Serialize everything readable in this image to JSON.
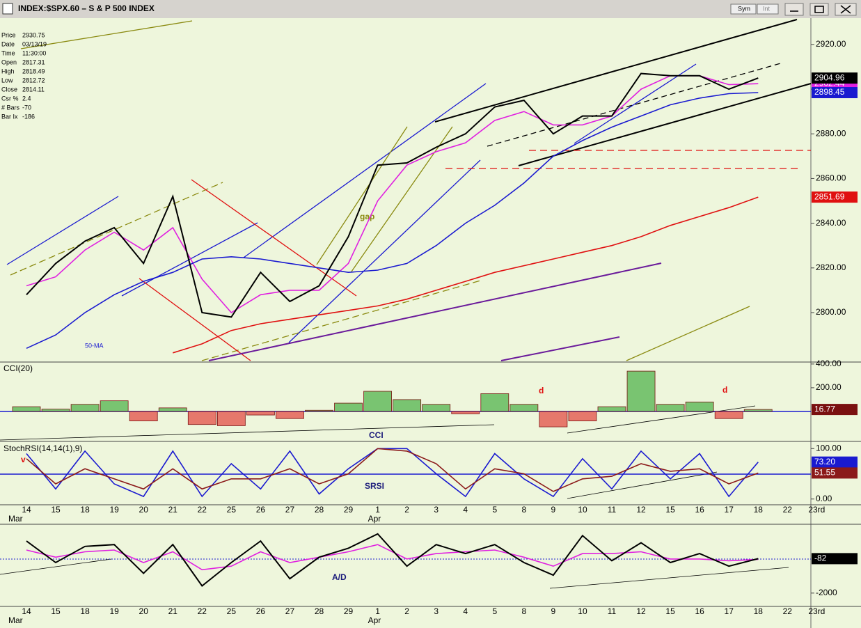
{
  "window": {
    "title": "INDEX:$SPX.60 – S & P 500 INDEX",
    "buttons": [
      "Sym",
      "Int"
    ]
  },
  "info": [
    [
      "Price",
      "2930.75"
    ],
    [
      "Date",
      "03/13/19"
    ],
    [
      "Time",
      "11:30:00"
    ],
    [
      "Open",
      "2817.31"
    ],
    [
      "High",
      "2818.49"
    ],
    [
      "Low",
      "2812.72"
    ],
    [
      "Close",
      "2814.11"
    ],
    [
      "Csr %",
      "2.4"
    ],
    [
      "# Bars",
      "-70"
    ],
    [
      "Bar Ix",
      "-186"
    ]
  ],
  "chart_data": [
    {
      "type": "line",
      "ylim": [
        2778.5,
        2931.8
      ],
      "yticks": [
        {
          "value": 2800,
          "label": "2800.00"
        },
        {
          "value": 2820,
          "label": "2820.00"
        },
        {
          "value": 2840,
          "label": "2840.00"
        },
        {
          "value": 2860,
          "label": "2860.00"
        },
        {
          "value": 2880,
          "label": "2880.00"
        },
        {
          "value": 2900,
          "label": "2900.00"
        },
        {
          "value": 2920,
          "label": "2920.00"
        }
      ],
      "annotations": [
        "gap",
        "50-MA"
      ],
      "series": [
        {
          "color": "#e020e0",
          "values": [
            2812,
            2816,
            2828,
            2836,
            2828,
            2838,
            2815,
            2800,
            2808,
            2810,
            2810,
            2822,
            2850,
            2866,
            2872,
            2876,
            2886,
            2890,
            2884,
            2884,
            2888,
            2900,
            2906,
            2906,
            2902,
            2902.44,
            null,
            null
          ],
          "value_labels": [
            null,
            null,
            null,
            null,
            null,
            null,
            null,
            null,
            null,
            null,
            null,
            null,
            null,
            null,
            null,
            null,
            null,
            null,
            null,
            null,
            null,
            null,
            null,
            null,
            null,
            "2902.44",
            null,
            null
          ]
        },
        {
          "color": "#1a1ad0",
          "values": [
            2784,
            2790,
            2800,
            2808,
            2814,
            2818,
            2824,
            2825,
            2824,
            2822,
            2820,
            2818,
            2819,
            2822,
            2830,
            2840,
            2848,
            2858,
            2870,
            2877,
            2883,
            2888,
            2893,
            2896,
            2898,
            2898.45,
            null,
            null
          ],
          "value_labels": [
            null,
            null,
            null,
            null,
            null,
            null,
            null,
            null,
            null,
            null,
            null,
            null,
            null,
            null,
            null,
            null,
            null,
            null,
            null,
            null,
            null,
            null,
            null,
            null,
            null,
            "2898.45",
            null,
            null
          ]
        },
        {
          "color": "#e01010",
          "values": [
            null,
            null,
            null,
            null,
            null,
            2782,
            2786,
            2792,
            2795,
            2797,
            2799,
            2801,
            2803,
            2806,
            2810,
            2814,
            2818,
            2821,
            2824,
            2827,
            2830,
            2834,
            2839,
            2843,
            2847,
            2851.69,
            null,
            null
          ],
          "value_labels": [
            null,
            null,
            null,
            null,
            null,
            null,
            null,
            null,
            null,
            null,
            null,
            null,
            null,
            null,
            null,
            null,
            null,
            null,
            null,
            null,
            null,
            null,
            null,
            null,
            null,
            "2851.69",
            null,
            null
          ]
        },
        {
          "color": "#000000",
          "values": [
            2808,
            2822,
            2832,
            2838,
            2822,
            2852,
            2800,
            2798,
            2818,
            2805,
            2812,
            2834,
            2866,
            2867,
            2874,
            2880,
            2892,
            2895,
            2880,
            2888,
            2888,
            2907,
            2906,
            2906,
            2900,
            2904.96,
            null,
            null
          ],
          "value_labels": [
            null,
            null,
            null,
            null,
            null,
            null,
            null,
            null,
            null,
            null,
            null,
            null,
            null,
            null,
            null,
            null,
            null,
            null,
            null,
            null,
            null,
            null,
            null,
            null,
            null,
            "2904.96",
            null,
            null
          ]
        }
      ]
    },
    {
      "type": "bar",
      "title": "CCI(20)",
      "ylim": [
        -241,
        405
      ],
      "yticks": [
        {
          "value": 200,
          "label": "200.00"
        },
        {
          "value": 400,
          "label": "400.00"
        }
      ],
      "annotations": [
        "CCI",
        "d",
        "d"
      ],
      "colors": {
        "positive": "#1a9a1a",
        "negative": "#e01010"
      },
      "values": [
        40,
        20,
        60,
        90,
        -80,
        30,
        -110,
        -120,
        -30,
        -60,
        10,
        70,
        170,
        100,
        60,
        -20,
        150,
        60,
        -130,
        -80,
        40,
        340,
        60,
        80,
        -60,
        16.77,
        null,
        null
      ],
      "label_color": "#7a1010"
    },
    {
      "type": "line",
      "title": "StochRSI(14,14(1),9)",
      "ylim": [
        -10,
        110
      ],
      "yticks": [
        {
          "value": 0,
          "label": "0.00"
        },
        {
          "value": 100,
          "label": "100.00"
        }
      ],
      "annotations": [
        "SRSI",
        "v"
      ],
      "categories": [
        "14",
        "15",
        "18",
        "19",
        "20",
        "21",
        "22",
        "25",
        "26",
        "27",
        "28",
        "29",
        "1",
        "2",
        "3",
        "4",
        "5",
        "8",
        "9",
        "10",
        "11",
        "12",
        "15",
        "16",
        "17",
        "18",
        "22",
        "23rd"
      ],
      "month_labels": [
        "Mar",
        null,
        null,
        null,
        null,
        null,
        null,
        null,
        null,
        null,
        null,
        null,
        "Apr",
        null,
        null,
        null,
        null,
        null,
        null,
        null,
        null,
        null,
        null,
        null,
        null,
        null,
        null,
        null
      ],
      "series": [
        {
          "color": "#1a1ad0",
          "values": [
            90,
            20,
            95,
            30,
            5,
            95,
            5,
            70,
            20,
            95,
            10,
            60,
            100,
            100,
            50,
            5,
            90,
            40,
            5,
            80,
            20,
            95,
            40,
            90,
            5,
            73.2,
            null,
            null
          ],
          "value_labels": [
            null,
            null,
            null,
            null,
            null,
            null,
            null,
            null,
            null,
            null,
            null,
            null,
            null,
            null,
            null,
            null,
            null,
            null,
            null,
            null,
            null,
            null,
            null,
            null,
            null,
            "73.20",
            null,
            null
          ]
        },
        {
          "color": "#8b1a1a",
          "values": [
            80,
            30,
            60,
            40,
            20,
            60,
            20,
            40,
            40,
            60,
            30,
            50,
            100,
            95,
            70,
            20,
            60,
            50,
            15,
            40,
            45,
            70,
            55,
            60,
            30,
            51.55,
            null,
            null
          ],
          "value_labels": [
            null,
            null,
            null,
            null,
            null,
            null,
            null,
            null,
            null,
            null,
            null,
            null,
            null,
            null,
            null,
            null,
            null,
            null,
            null,
            null,
            null,
            null,
            null,
            null,
            null,
            "51.55",
            null,
            null
          ]
        }
      ]
    },
    {
      "type": "line",
      "ylim": [
        -2704,
        1717
      ],
      "yticks": [
        -2000
      ],
      "annotations": [
        "A/D"
      ],
      "categories": [
        "14",
        "15",
        "18",
        "19",
        "20",
        "21",
        "22",
        "25",
        "26",
        "27",
        "28",
        "29",
        "1",
        "2",
        "3",
        "4",
        "5",
        "8",
        "9",
        "10",
        "11",
        "12",
        "15",
        "16",
        "17",
        "18",
        "22",
        "23rd"
      ],
      "month_labels": [
        "Mar",
        null,
        null,
        null,
        null,
        null,
        null,
        null,
        null,
        null,
        null,
        null,
        "Apr",
        null,
        null,
        null,
        null,
        null,
        null,
        null,
        null,
        null,
        null,
        null,
        null,
        null,
        null,
        null
      ],
      "series": [
        {
          "color": "#e020e0",
          "values": [
            400,
            0,
            300,
            400,
            -300,
            300,
            -700,
            -500,
            300,
            -300,
            0,
            300,
            700,
            -100,
            200,
            300,
            400,
            0,
            -500,
            200,
            200,
            300,
            -100,
            -100,
            -200,
            -120,
            null,
            null
          ]
        },
        {
          "color": "#000000",
          "values": [
            900,
            -300,
            600,
            700,
            -900,
            700,
            -1600,
            -300,
            900,
            -1200,
            0,
            500,
            1300,
            -500,
            700,
            200,
            700,
            -300,
            -1000,
            1200,
            -200,
            800,
            -300,
            200,
            -500,
            -82,
            null,
            null
          ],
          "value_labels": [
            null,
            null,
            null,
            null,
            null,
            null,
            null,
            null,
            null,
            null,
            null,
            null,
            null,
            null,
            null,
            null,
            null,
            null,
            null,
            null,
            null,
            null,
            null,
            null,
            null,
            "-82",
            null,
            null
          ]
        }
      ]
    }
  ]
}
